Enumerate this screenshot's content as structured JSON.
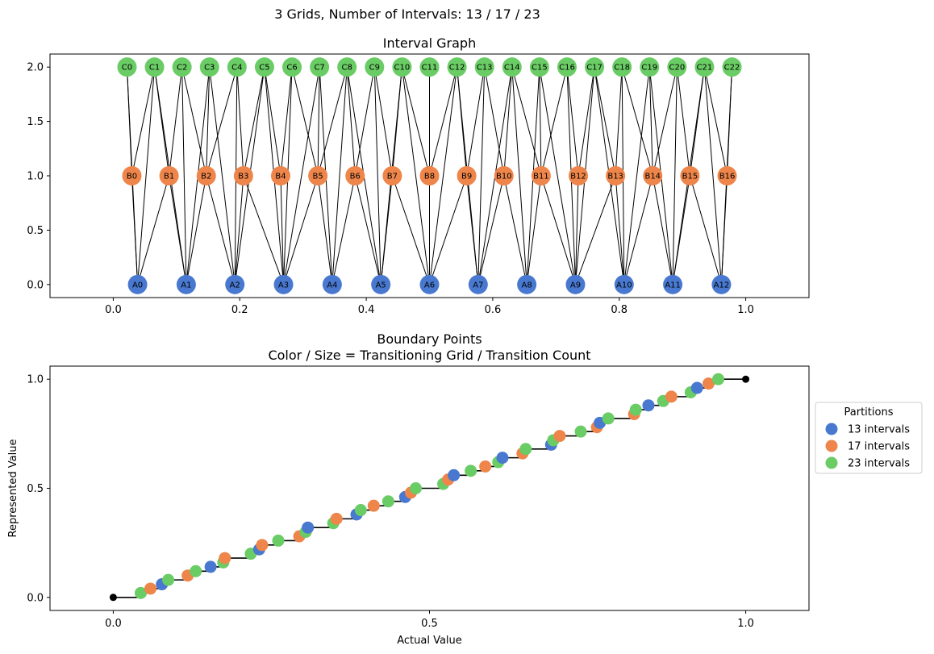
{
  "figure_title": "3 Grids, Number of Intervals: 13 / 17 / 23",
  "colors": {
    "A": "#4878cf",
    "B": "#ee854a",
    "C": "#6acc64",
    "edge": "#000000",
    "step": "#000000"
  },
  "chart_data": [
    {
      "type": "network",
      "title": "Interval Graph",
      "xlabel": "",
      "ylabel": "",
      "xlim": [
        -0.1,
        1.1
      ],
      "ylim": [
        -0.12,
        2.12
      ],
      "xticks": [
        "0.0",
        "0.2",
        "0.4",
        "0.6",
        "0.8",
        "1.0"
      ],
      "yticks": [
        "0.0",
        "0.5",
        "1.0",
        "1.5",
        "2.0"
      ],
      "rows": [
        {
          "name": "A",
          "y": 0,
          "count": 13
        },
        {
          "name": "B",
          "y": 1,
          "count": 17
        },
        {
          "name": "C",
          "y": 2,
          "count": 23
        }
      ]
    },
    {
      "type": "scatter",
      "title": "Boundary Points\nColor / Size = Transitioning Grid / Transition Count",
      "xlabel": "Actual Value",
      "ylabel": "Represented Value",
      "xlim": [
        -0.1,
        1.1
      ],
      "ylim": [
        -0.06,
        1.06
      ],
      "xticks": [
        "0.0",
        "0.5",
        "1.0"
      ],
      "yticks": [
        "0.0",
        "0.5",
        "1.0"
      ],
      "legend": {
        "title": "Partitions",
        "placement": "right",
        "entries": [
          "13 intervals",
          "17 intervals",
          "23 intervals"
        ]
      },
      "series": [
        {
          "name": "13 intervals",
          "grid": 13
        },
        {
          "name": "17 intervals",
          "grid": 17
        },
        {
          "name": "23 intervals",
          "grid": 23
        }
      ],
      "endpoints": [
        [
          0,
          0
        ],
        [
          1,
          1
        ]
      ]
    }
  ]
}
